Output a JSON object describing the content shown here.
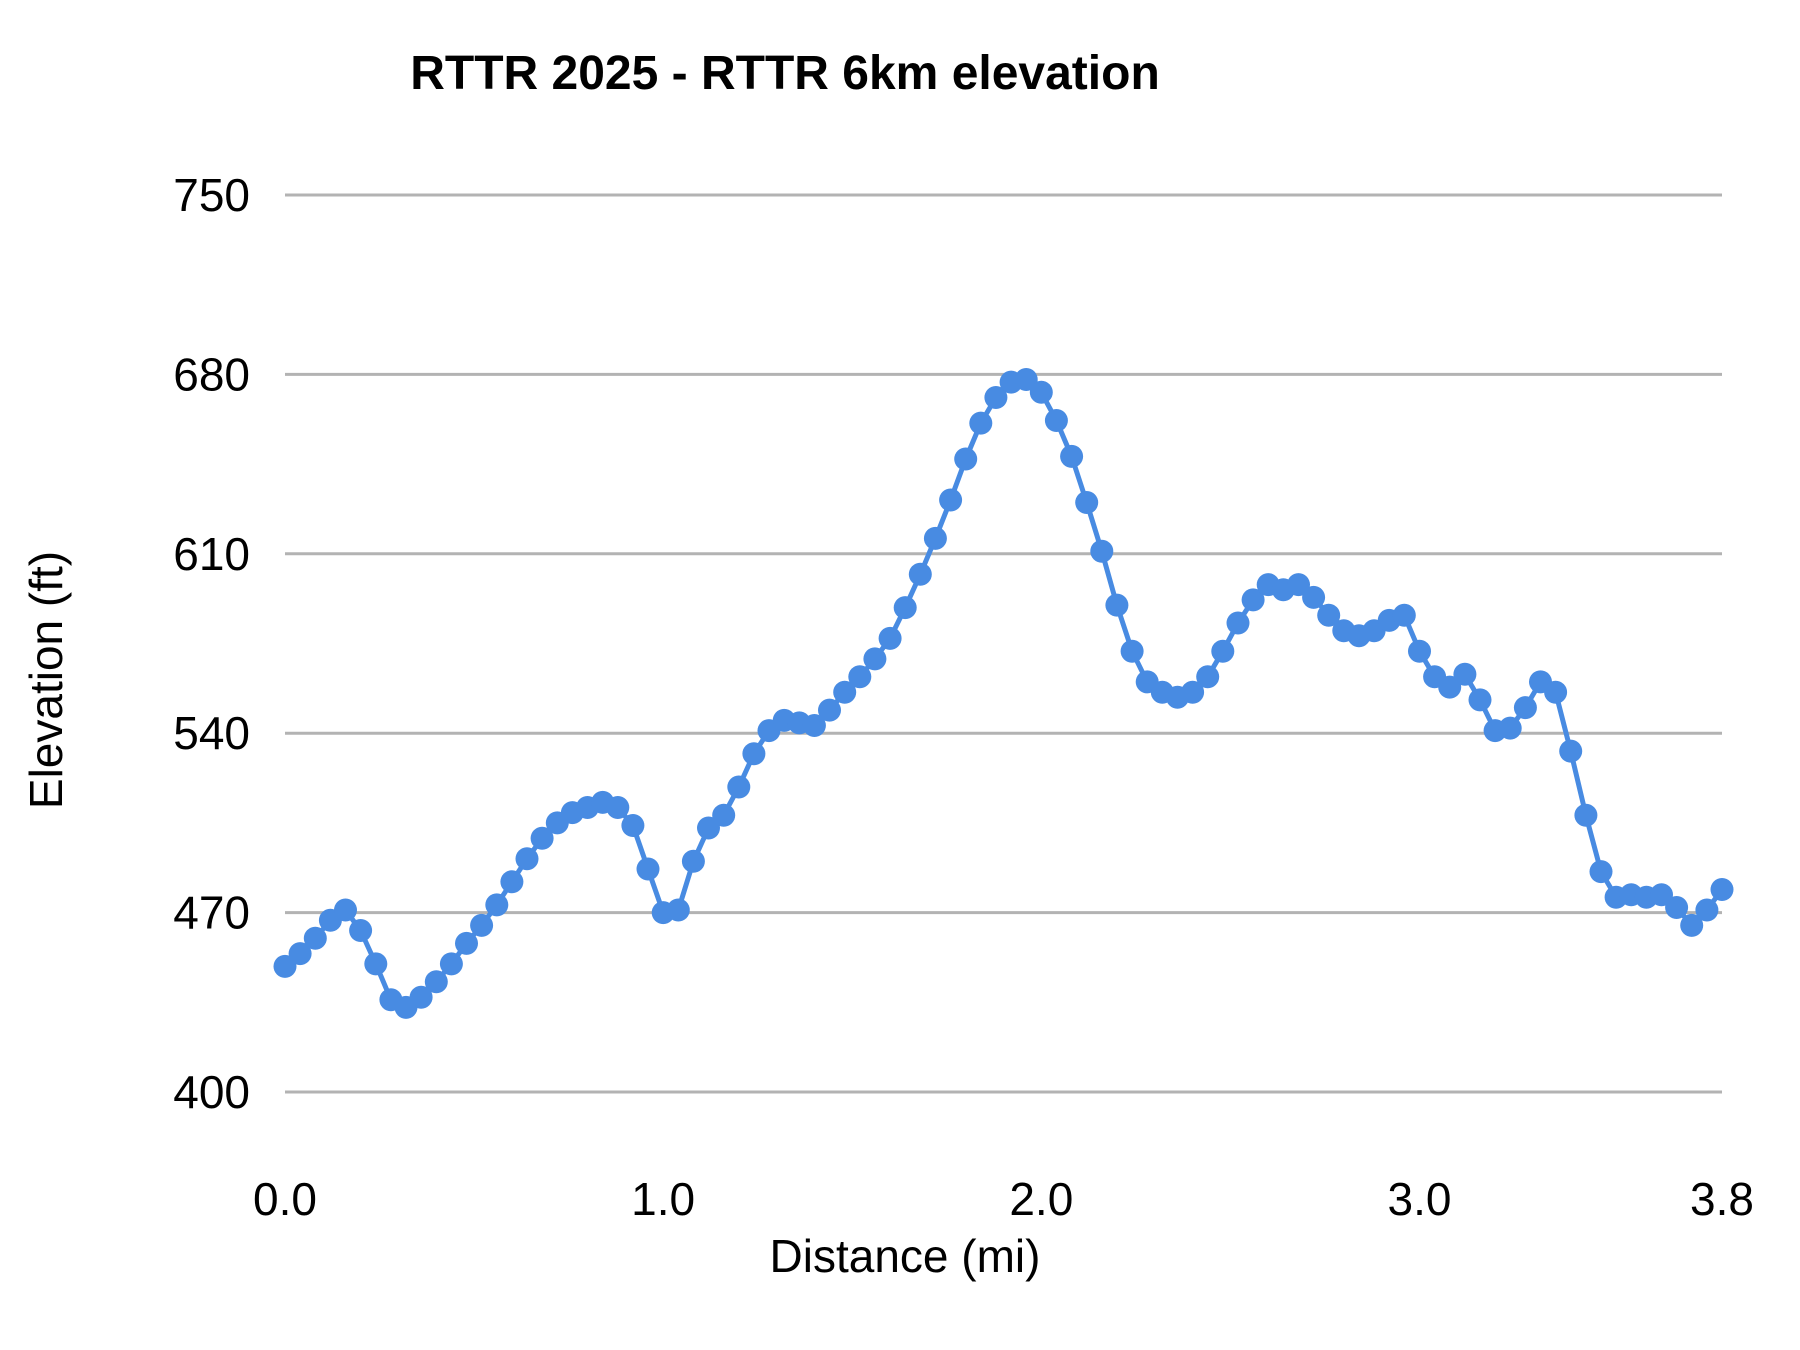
{
  "chart_title": "RTTR 2025 - RTTR 6km elevation",
  "chart_data": {
    "type": "line",
    "title": "RTTR 2025 - RTTR 6km elevation",
    "xlabel": "Distance (mi)",
    "ylabel": "Elevation (ft)",
    "xlim": [
      0,
      3.8
    ],
    "ylim": [
      400,
      750
    ],
    "grid": "horizontal-only",
    "legend": "none",
    "line_color": "#488be2",
    "marker": "circle",
    "gridline_color": "#b3b3b3",
    "y_ticks": [
      400,
      470,
      540,
      610,
      680,
      750
    ],
    "x_tick_values": [
      0,
      1,
      2,
      3,
      3.8
    ],
    "x_tick_labels": [
      "0.0",
      "1.0",
      "2.0",
      "3.0",
      "3.8"
    ],
    "series_name": "elevation",
    "x_mi": [
      0.0,
      0.04,
      0.08,
      0.12,
      0.16,
      0.2,
      0.24,
      0.28,
      0.32,
      0.36,
      0.4,
      0.44,
      0.48,
      0.52,
      0.56,
      0.6,
      0.64,
      0.68,
      0.72,
      0.76,
      0.8,
      0.84,
      0.88,
      0.92,
      0.96,
      1.0,
      1.04,
      1.08,
      1.12,
      1.16,
      1.2,
      1.24,
      1.28,
      1.32,
      1.36,
      1.4,
      1.44,
      1.48,
      1.52,
      1.56,
      1.6,
      1.64,
      1.68,
      1.72,
      1.76,
      1.8,
      1.84,
      1.88,
      1.92,
      1.96,
      2.0,
      2.04,
      2.08,
      2.12,
      2.16,
      2.2,
      2.24,
      2.28,
      2.32,
      2.36,
      2.4,
      2.44,
      2.48,
      2.52,
      2.56,
      2.6,
      2.64,
      2.68,
      2.72,
      2.76,
      2.8,
      2.84,
      2.88,
      2.92,
      2.96,
      3.0,
      3.04,
      3.08,
      3.12,
      3.16,
      3.2,
      3.24,
      3.28,
      3.32,
      3.36,
      3.4,
      3.44,
      3.48,
      3.52,
      3.56,
      3.6,
      3.64,
      3.68,
      3.72,
      3.76,
      3.8
    ],
    "elevation_ft": [
      449,
      454,
      460,
      467,
      471,
      463,
      450,
      436,
      433,
      437,
      443,
      450,
      458,
      465,
      473,
      482,
      491,
      499,
      505,
      509,
      511,
      513,
      511,
      504,
      487,
      470,
      471,
      490,
      503,
      508,
      519,
      532,
      541,
      545,
      544,
      543,
      549,
      556,
      562,
      569,
      577,
      589,
      602,
      616,
      631,
      647,
      661,
      671,
      677,
      678,
      673,
      662,
      648,
      630,
      611,
      590,
      572,
      560,
      556,
      554,
      556,
      562,
      572,
      583,
      592,
      598,
      596,
      598,
      593,
      586,
      580,
      578,
      580,
      584,
      586,
      572,
      562,
      558,
      563,
      553,
      541,
      542,
      550,
      560,
      556,
      533,
      508,
      486,
      476,
      477,
      476,
      477,
      472,
      465,
      471,
      479
    ]
  }
}
